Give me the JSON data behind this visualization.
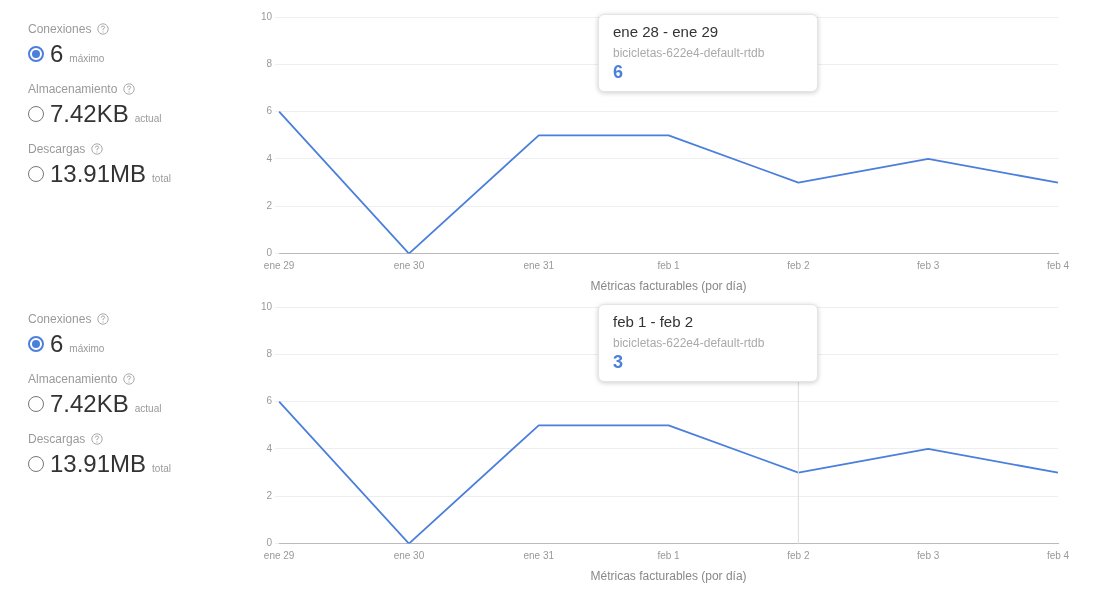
{
  "chart_data": [
    {
      "type": "other",
      "annotations": [
        "Conexiones",
        "6",
        "máximo",
        "Almacenamiento",
        "7.42KB",
        "actual",
        "Descargas",
        "13.91MB",
        "total"
      ]
    },
    {
      "type": "line",
      "xlabel": "Métricas facturables (por día)",
      "categories": [
        "ene 29",
        "ene 30",
        "ene 31",
        "feb 1",
        "feb 2",
        "feb 3",
        "feb 4"
      ],
      "series": [
        {
          "color": "#4a7fdb",
          "values": [
            6,
            0,
            5,
            5,
            3,
            4,
            3
          ]
        }
      ],
      "ylim": [
        0,
        10
      ],
      "yticks": [
        0,
        2,
        4,
        6,
        8,
        10
      ],
      "grid": "y",
      "legend": false,
      "marker": "none",
      "annotations": [
        "ene 28 - ene 29",
        "bicicletas-622e4-default-rtdb",
        "6"
      ]
    },
    {
      "type": "other",
      "annotations": [
        "Conexiones",
        "6",
        "máximo",
        "Almacenamiento",
        "7.42KB",
        "actual",
        "Descargas",
        "13.91MB",
        "total"
      ]
    },
    {
      "type": "line",
      "xlabel": "Métricas facturables (por día)",
      "categories": [
        "ene 29",
        "ene 30",
        "ene 31",
        "feb 1",
        "feb 2",
        "feb 3",
        "feb 4"
      ],
      "series": [
        {
          "color": "#4a7fdb",
          "values": [
            6,
            0,
            5,
            5,
            3,
            4,
            3
          ]
        }
      ],
      "ylim": [
        0,
        10
      ],
      "yticks": [
        0,
        2,
        4,
        6,
        8,
        10
      ],
      "grid": "y",
      "legend": false,
      "marker": "none",
      "ref_lines": [
        {
          "axis": "x",
          "value": "feb 2",
          "color": "#dddddd"
        }
      ],
      "annotations": [
        "feb 1 - feb 2",
        "bicicletas-622e4-default-rtdb",
        "3"
      ]
    }
  ]
}
